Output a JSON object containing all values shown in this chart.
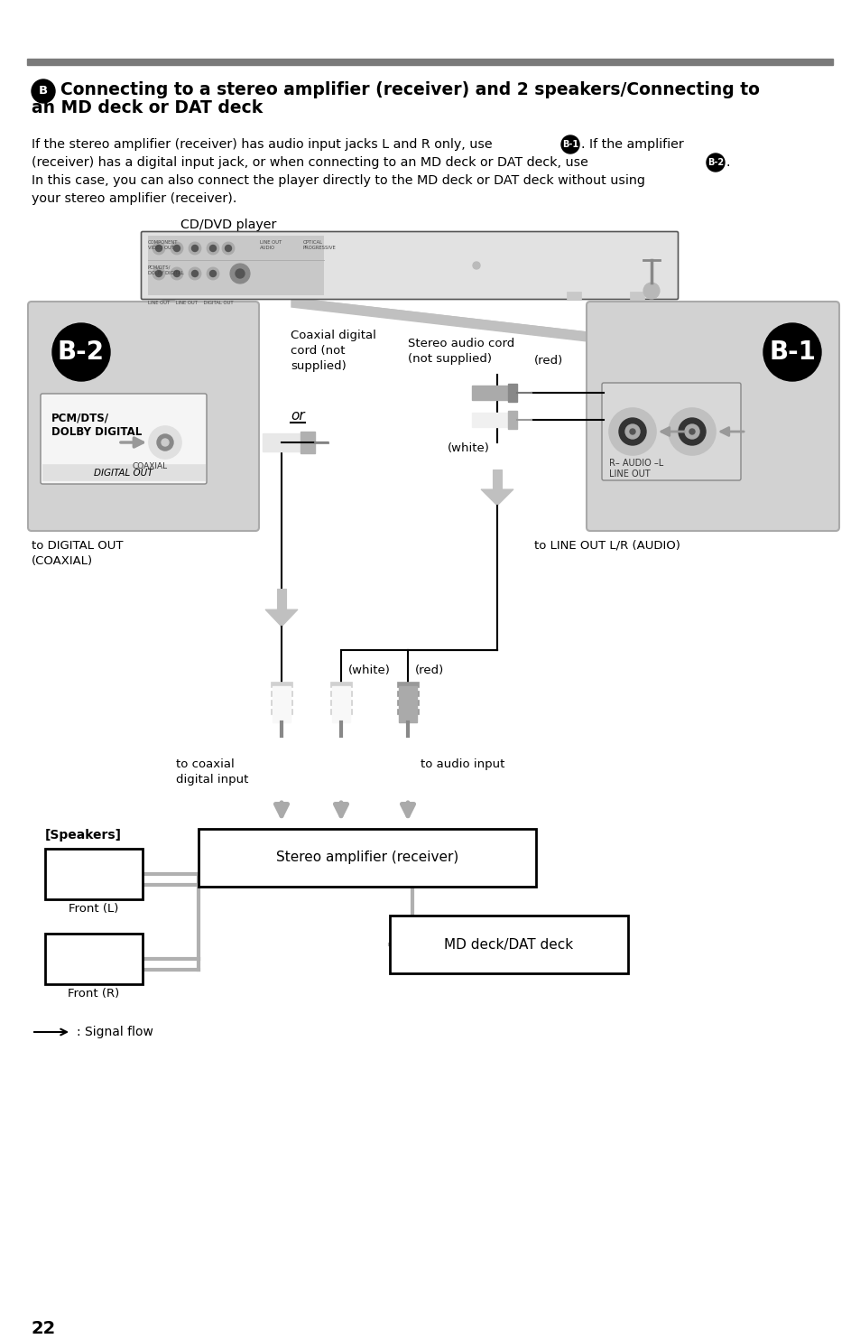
{
  "title_line1": "Connecting to a stereo amplifier (receiver) and 2 speakers/Connecting to",
  "title_line2": "an MD deck or DAT deck",
  "para_line1": "If the stereo amplifier (receiver) has audio input jacks L and R only, use",
  "para_line2": "(receiver) has a digital input jack, or when connecting to an MD deck or DAT deck, use",
  "para_line3": "In this case, you can also connect the player directly to the MD deck or DAT deck without using",
  "para_line4": "your stereo amplifier (receiver).",
  "para_after1": ". If the amplifier",
  "para_after2": ".",
  "cdvd_label": "CD/DVD player",
  "b2_label": "B-2",
  "b1_label": "B-1",
  "coaxial_label1": "Coaxial digital",
  "coaxial_label2": "cord (not",
  "coaxial_label3": "supplied)",
  "stereo_label1": "Stereo audio cord",
  "stereo_label2": "(not supplied)",
  "red_top": "(red)",
  "white_top": "(white)",
  "white_bot": "(white)",
  "red_bot": "(red)",
  "digital_out1": "to DIGITAL OUT",
  "digital_out2": "(COAXIAL)",
  "line_out": "to LINE OUT L/R (AUDIO)",
  "pcm1": "PCM/DTS/",
  "pcm2": "DOLBY DIGITAL",
  "coaxial_small": "COAXIAL",
  "digital_out_small": "DIGITAL OUT",
  "coax_input1": "to coaxial",
  "coax_input2": "digital input",
  "audio_input": "to audio input",
  "or_label": "or",
  "speakers_label": "[Speakers]",
  "front_l": "Front (L)",
  "front_r": "Front (R)",
  "amplifier_label": "Stereo amplifier (receiver)",
  "md_deck_label": "MD deck/DAT deck",
  "signal_flow": ": Signal flow",
  "page_number": "22",
  "gray_bar": "#7a7a7a",
  "box_gray": "#cccccc",
  "dark_gray": "#888888",
  "light_gray": "#dddddd",
  "bg": "#ffffff"
}
